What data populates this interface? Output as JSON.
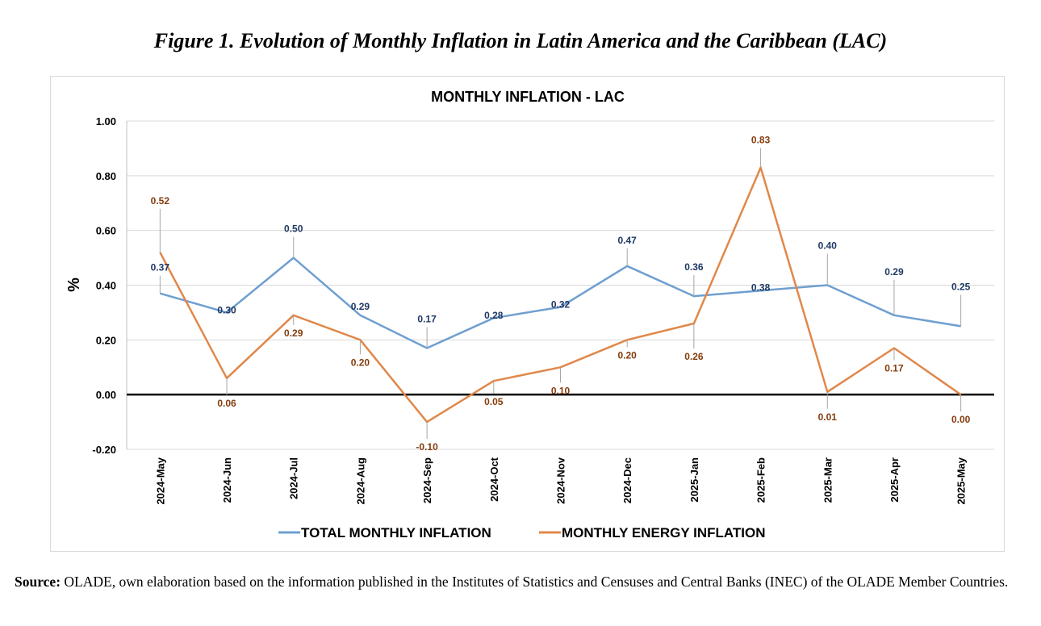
{
  "figure": {
    "title": "Figure 1. Evolution of Monthly Inflation in Latin America and the Caribbean (LAC)"
  },
  "source": {
    "label": "Source:",
    "text": " OLADE, own elaboration based on the information published in the Institutes of Statistics and Censuses and Central Banks (INEC) of the OLADE Member Countries."
  },
  "chart_data": {
    "type": "line",
    "title": "MONTHLY INFLATION  - LAC",
    "xlabel": "",
    "ylabel": "%",
    "ylim": [
      -0.2,
      1.0
    ],
    "yticks": [
      "1.00",
      "0.80",
      "0.60",
      "0.40",
      "0.20",
      "0.00",
      "-0.20"
    ],
    "grid": true,
    "legend": "bottom",
    "categories": [
      "2024-May",
      "2024-Jun",
      "2024-Jul",
      "2024-Aug",
      "2024-Sep",
      "2024-Oct",
      "2024-Nov",
      "2024-Dec",
      "2025-Jan",
      "2025-Feb",
      "2025-Mar",
      "2025-Apr",
      "2025-May"
    ],
    "series": [
      {
        "name": "TOTAL MONTHLY INFLATION",
        "color": "#6f9fd1",
        "label_color": "#1f3864",
        "values": [
          0.37,
          0.3,
          0.5,
          0.29,
          0.17,
          0.28,
          0.32,
          0.47,
          0.36,
          0.38,
          0.4,
          0.29,
          0.25
        ],
        "labels": [
          "0.37",
          "0.30",
          "0.50",
          "0.29",
          "0.17",
          "0.28",
          "0.32",
          "0.47",
          "0.36",
          "0.38",
          "0.40",
          "0.29",
          "0.25"
        ]
      },
      {
        "name": "MONTHLY ENERGY INFLATION",
        "color": "#e0884a",
        "label_color": "#843c0c",
        "values": [
          0.52,
          0.06,
          0.29,
          0.2,
          -0.1,
          0.05,
          0.1,
          0.2,
          0.26,
          0.83,
          0.01,
          0.17,
          0.0
        ],
        "labels": [
          "0.52",
          "0.06",
          "0.29",
          "0.20",
          "-0.10",
          "0.05",
          "0.10",
          "0.20",
          "0.26",
          "0.83",
          "0.01",
          "0.17",
          "0.00"
        ]
      }
    ]
  }
}
